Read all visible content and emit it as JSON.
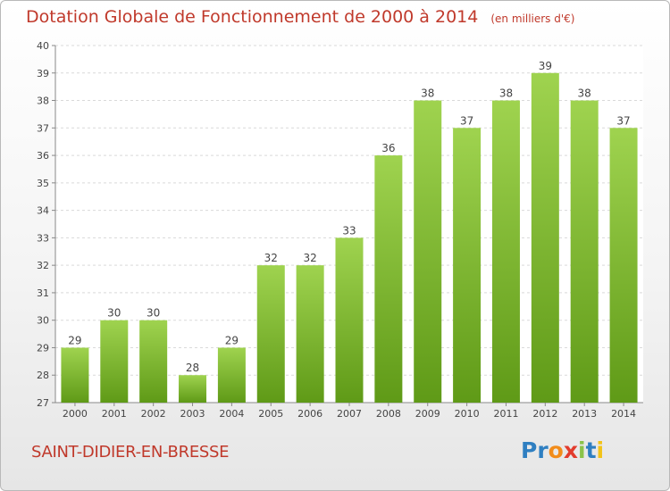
{
  "colors": {
    "bar_top": "#9fd34f",
    "bar_bottom": "#5f9a17",
    "title": "#c0392b"
  },
  "chart_data": {
    "type": "bar",
    "title": "Dotation Globale de Fonctionnement de 2000 à 2014",
    "subtitle": "(en milliers d'€)",
    "categories": [
      "2000",
      "2001",
      "2002",
      "2003",
      "2004",
      "2005",
      "2006",
      "2007",
      "2008",
      "2009",
      "2010",
      "2011",
      "2012",
      "2013",
      "2014"
    ],
    "values": [
      29,
      30,
      30,
      28,
      29,
      32,
      32,
      33,
      36,
      38,
      37,
      38,
      39,
      38,
      37
    ],
    "ylim": [
      27,
      40
    ],
    "yticks": [
      27,
      28,
      29,
      30,
      31,
      32,
      33,
      34,
      35,
      36,
      37,
      38,
      39,
      40
    ],
    "grid": true,
    "xlabel": "",
    "ylabel": ""
  },
  "footer": {
    "commune": "SAINT-DIDIER-EN-BRESSE",
    "logo_text": "Proxiti"
  }
}
